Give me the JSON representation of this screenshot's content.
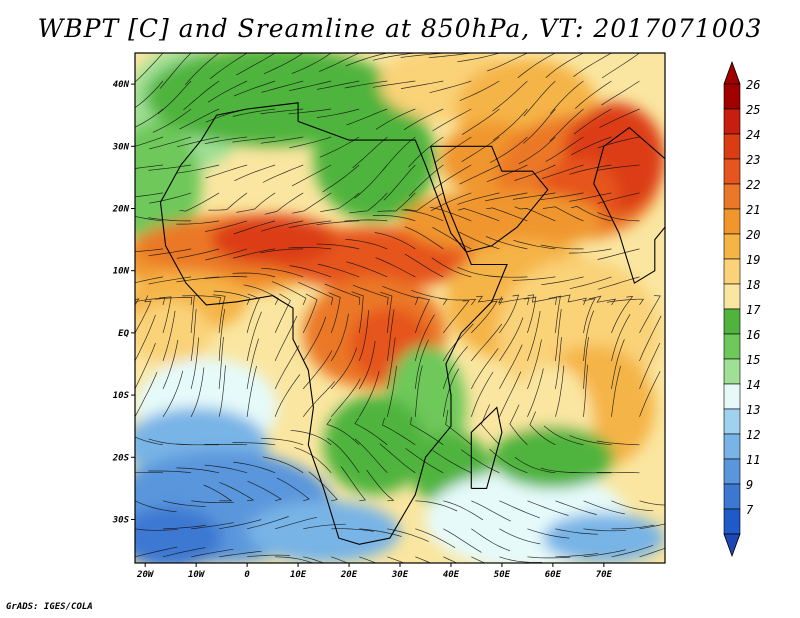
{
  "title": "WBPT [C] and Sreamline at 850hPa, VT: 2017071003",
  "credit": "GrADS: IGES/COLA",
  "map": {
    "lon_range": [
      -22,
      82
    ],
    "lat_range": [
      -37,
      45
    ],
    "lat_labels": [
      "40N",
      "30N",
      "20N",
      "10N",
      "EQ",
      "10S",
      "20S",
      "30S"
    ],
    "lat_values": [
      40,
      30,
      20,
      10,
      0,
      -10,
      -20,
      -30
    ],
    "lon_labels": [
      "20W",
      "10W",
      "0",
      "10E",
      "20E",
      "30E",
      "40E",
      "50E",
      "60E",
      "70E"
    ],
    "lon_values": [
      -20,
      -10,
      0,
      10,
      20,
      30,
      40,
      50,
      60,
      70
    ]
  },
  "colorbar": {
    "labels": [
      "26",
      "25",
      "24",
      "23",
      "22",
      "21",
      "20",
      "19",
      "18",
      "17",
      "16",
      "15",
      "14",
      "13",
      "12",
      "11",
      "9",
      "7"
    ],
    "colors": [
      "#a00000",
      "#c81e0f",
      "#dc3c14",
      "#e6551e",
      "#eb7828",
      "#f0962d",
      "#f5b446",
      "#fad278",
      "#fae6a0",
      "#50b43c",
      "#6ec85a",
      "#a0e096",
      "#e6fafa",
      "#a0d2f0",
      "#78b4e6",
      "#5a96dc",
      "#3c78d2",
      "#1e5ac8"
    ]
  }
}
